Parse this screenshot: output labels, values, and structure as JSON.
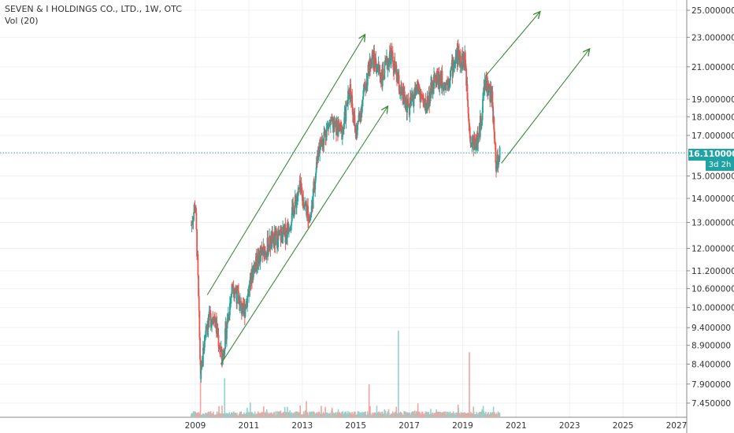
{
  "header": {
    "title": "SEVEN & I HOLDINGS CO., LTD., 1W, OTC",
    "volume_label": "Vol (20)"
  },
  "price_tag": {
    "value": "16.110000",
    "countdown": "3d 2h"
  },
  "colors": {
    "up": "#26a69a",
    "down": "#ef5350",
    "trendline": "#3a8a3a",
    "price_line": "#1fa3a5",
    "grid": "#eef0f3",
    "axis_text": "#333333"
  },
  "chart_data": {
    "type": "candlestick",
    "title": "SEVEN & I HOLDINGS CO., LTD., 1W, OTC",
    "y_scale": "log",
    "ylim": [
      7.2,
      26
    ],
    "xlim": [
      2008.0,
      2028.0
    ],
    "y_ticks": [
      "25.000000",
      "23.000000",
      "21.000000",
      "19.000000",
      "18.000000",
      "17.000000",
      "15.000000",
      "14.000000",
      "13.000000",
      "12.000000",
      "11.200000",
      "10.600000",
      "10.000000",
      "9.400000",
      "8.900000",
      "8.400000",
      "7.900000",
      "7.450000"
    ],
    "x_ticks": [
      "2009",
      "2011",
      "2013",
      "2015",
      "2017",
      "2019",
      "2021",
      "2023",
      "2025",
      "2027"
    ],
    "last_price": 16.11,
    "price_path_approx": [
      {
        "x": 2008.85,
        "y": 12.9
      },
      {
        "x": 2009.0,
        "y": 13.8
      },
      {
        "x": 2009.08,
        "y": 11.5
      },
      {
        "x": 2009.2,
        "y": 8.0
      },
      {
        "x": 2009.4,
        "y": 9.5
      },
      {
        "x": 2009.7,
        "y": 9.8
      },
      {
        "x": 2010.0,
        "y": 8.5
      },
      {
        "x": 2010.4,
        "y": 10.8
      },
      {
        "x": 2010.8,
        "y": 9.8
      },
      {
        "x": 2011.2,
        "y": 11.4
      },
      {
        "x": 2011.8,
        "y": 12.2
      },
      {
        "x": 2012.4,
        "y": 12.6
      },
      {
        "x": 2012.9,
        "y": 14.4
      },
      {
        "x": 2013.3,
        "y": 13.1
      },
      {
        "x": 2013.6,
        "y": 16.3
      },
      {
        "x": 2014.0,
        "y": 17.6
      },
      {
        "x": 2014.5,
        "y": 17.2
      },
      {
        "x": 2014.8,
        "y": 19.8
      },
      {
        "x": 2015.0,
        "y": 17.0
      },
      {
        "x": 2015.3,
        "y": 19.3
      },
      {
        "x": 2015.6,
        "y": 21.7
      },
      {
        "x": 2016.0,
        "y": 20.3
      },
      {
        "x": 2016.3,
        "y": 21.9
      },
      {
        "x": 2016.7,
        "y": 19.3
      },
      {
        "x": 2017.0,
        "y": 18.4
      },
      {
        "x": 2017.3,
        "y": 19.8
      },
      {
        "x": 2017.6,
        "y": 18.5
      },
      {
        "x": 2018.0,
        "y": 20.3
      },
      {
        "x": 2018.4,
        "y": 20.0
      },
      {
        "x": 2018.8,
        "y": 21.8
      },
      {
        "x": 2019.1,
        "y": 21.3
      },
      {
        "x": 2019.3,
        "y": 16.6
      },
      {
        "x": 2019.6,
        "y": 16.8
      },
      {
        "x": 2019.85,
        "y": 20.2
      },
      {
        "x": 2020.1,
        "y": 19.0
      },
      {
        "x": 2020.25,
        "y": 15.6
      },
      {
        "x": 2020.4,
        "y": 16.11
      }
    ],
    "trendlines_approx": [
      {
        "x1": 2009.45,
        "y1": 10.4,
        "x2": 2015.35,
        "y2": 23.2
      },
      {
        "x1": 2009.95,
        "y1": 8.4,
        "x2": 2016.2,
        "y2": 18.6
      },
      {
        "x1": 2019.85,
        "y1": 20.4,
        "x2": 2021.9,
        "y2": 24.9
      },
      {
        "x1": 2020.45,
        "y1": 15.6,
        "x2": 2023.75,
        "y2": 22.2
      }
    ],
    "volume_spikes_approx": [
      {
        "x": 2016.6,
        "v": 1.0
      },
      {
        "x": 2019.25,
        "v": 0.75
      },
      {
        "x": 2015.5,
        "v": 0.38
      },
      {
        "x": 2009.2,
        "v": 0.5
      },
      {
        "x": 2010.1,
        "v": 0.45
      }
    ]
  }
}
